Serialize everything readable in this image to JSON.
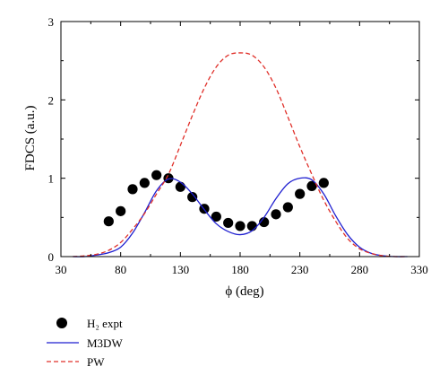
{
  "chart_data": {
    "type": "scatter",
    "xlabel": "ϕ (deg)",
    "ylabel": "FDCS (a.u.)",
    "xlim": [
      30,
      330
    ],
    "ylim": [
      0,
      3
    ],
    "xticks": [
      30,
      80,
      130,
      180,
      230,
      280,
      330
    ],
    "yticks": [
      0,
      1,
      2,
      3
    ],
    "grid": false,
    "legend_position": "bottom-left, below plot",
    "series": [
      {
        "name": "H₂ expt",
        "kind": "points",
        "color": "#000000",
        "x": [
          70,
          80,
          90,
          100,
          110,
          120,
          130,
          140,
          150,
          160,
          170,
          180,
          190,
          200,
          210,
          220,
          230,
          240,
          250
        ],
        "y": [
          0.45,
          0.58,
          0.86,
          0.94,
          1.04,
          1.0,
          0.89,
          0.76,
          0.61,
          0.51,
          0.43,
          0.39,
          0.39,
          0.44,
          0.54,
          0.63,
          0.8,
          0.9,
          0.94
        ]
      },
      {
        "name": "M3DW",
        "kind": "line",
        "style": "solid",
        "color": "#1f1fd0",
        "x": [
          40,
          50,
          60,
          70,
          80,
          90,
          100,
          110,
          120,
          130,
          140,
          150,
          160,
          170,
          180,
          190,
          200,
          210,
          220,
          230,
          240,
          250,
          260,
          270,
          280,
          290,
          300,
          310,
          320
        ],
        "y": [
          0.0,
          0.0,
          0.02,
          0.05,
          0.12,
          0.3,
          0.56,
          0.84,
          0.99,
          0.95,
          0.8,
          0.6,
          0.42,
          0.32,
          0.28,
          0.33,
          0.5,
          0.74,
          0.93,
          1.0,
          0.98,
          0.8,
          0.52,
          0.28,
          0.12,
          0.04,
          0.01,
          0.0,
          0.0
        ]
      },
      {
        "name": "PW",
        "kind": "line",
        "style": "dashed",
        "color": "#e0302a",
        "x": [
          40,
          50,
          60,
          70,
          80,
          90,
          100,
          110,
          120,
          130,
          140,
          150,
          160,
          170,
          180,
          190,
          200,
          210,
          220,
          230,
          240,
          250,
          260,
          270,
          280,
          290,
          300,
          310,
          320
        ],
        "y": [
          0.0,
          0.01,
          0.03,
          0.08,
          0.18,
          0.35,
          0.55,
          0.8,
          1.05,
          1.42,
          1.8,
          2.15,
          2.42,
          2.57,
          2.6,
          2.57,
          2.42,
          2.15,
          1.78,
          1.4,
          1.05,
          0.72,
          0.45,
          0.23,
          0.1,
          0.04,
          0.01,
          0.0,
          0.0
        ]
      }
    ]
  }
}
